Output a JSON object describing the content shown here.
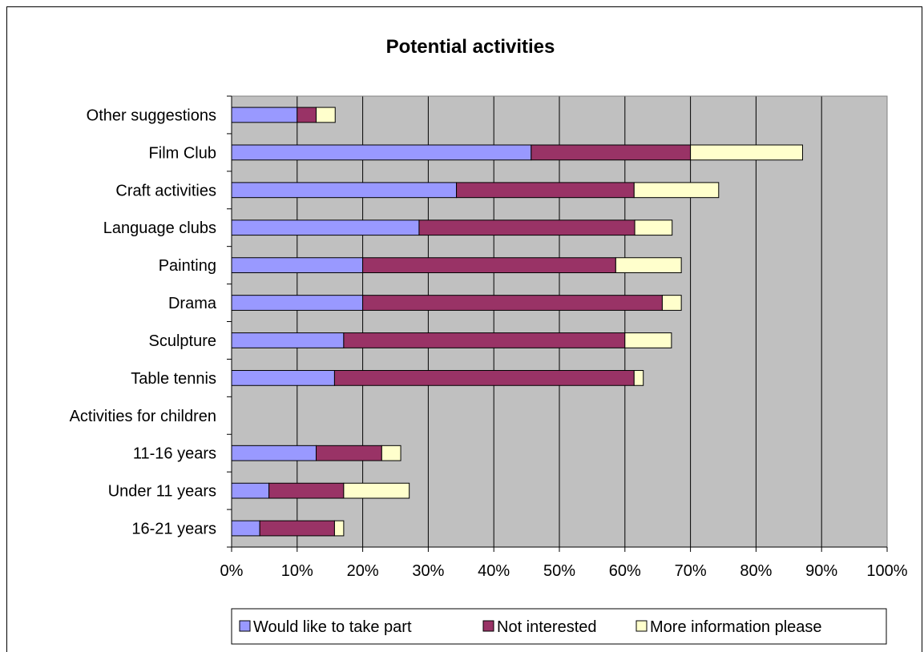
{
  "chart_data": {
    "type": "bar",
    "orientation": "horizontal",
    "stacked": true,
    "title": "Potential activities",
    "xlabel": "",
    "ylabel": "",
    "xlim": [
      0,
      100
    ],
    "x_ticks": [
      "0%",
      "10%",
      "20%",
      "30%",
      "40%",
      "50%",
      "60%",
      "70%",
      "80%",
      "90%",
      "100%"
    ],
    "grid": true,
    "legend_position": "bottom",
    "categories": [
      "Other suggestions",
      "Film Club",
      "Craft activities",
      "Language clubs",
      "Painting",
      "Drama",
      "Sculpture",
      "Table tennis",
      "Activities for children",
      "11-16 years",
      "Under 11 years",
      "16-21 years"
    ],
    "series": [
      {
        "name": "Would like to take part",
        "color": "#9999ff",
        "values": [
          10,
          45.7,
          34.3,
          28.6,
          20,
          20,
          17.1,
          15.7,
          0,
          12.9,
          5.7,
          4.3
        ]
      },
      {
        "name": "Not interested",
        "color": "#993366",
        "values": [
          2.9,
          24.3,
          27.1,
          32.9,
          38.6,
          45.7,
          42.9,
          45.7,
          0,
          10,
          11.4,
          11.4
        ]
      },
      {
        "name": "More information please",
        "color": "#ffffcc",
        "values": [
          2.9,
          17.1,
          12.9,
          5.7,
          10,
          2.9,
          7.1,
          1.4,
          0,
          2.9,
          10,
          1.4
        ]
      }
    ],
    "colors": {
      "plot_background": "#c0c0c0",
      "gridline": "#000000",
      "bar_outline": "#000000"
    }
  }
}
